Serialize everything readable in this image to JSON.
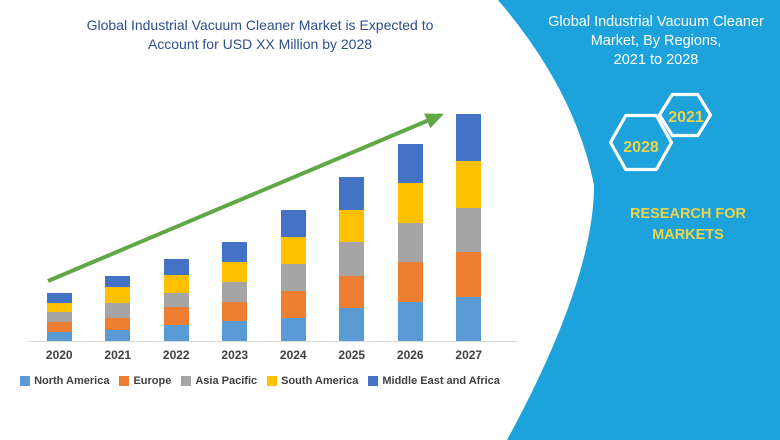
{
  "sidebar": {
    "bg_color": "#1DA2DB",
    "title_lines": [
      "Global Industrial Vacuum Cleaner",
      "Market, By Regions,",
      "2021 to 2028"
    ],
    "full_title": "Global Industrial Vacuum Cleaner Market, By Regions, 2021 to 2028",
    "hexagons": [
      {
        "label": "2028"
      },
      {
        "label": "2021"
      }
    ],
    "brand": "RESEARCH FOR MARKETS",
    "accent_text_color": "#E9D44C"
  },
  "chart_data": {
    "type": "bar",
    "stacked": true,
    "title": "Global Industrial Vacuum Cleaner Market is Expected to Account for USD XX Million by 2028",
    "title_color": "#2E4E8E",
    "categories": [
      "2020",
      "2021",
      "2022",
      "2023",
      "2024",
      "2025",
      "2026",
      "2027"
    ],
    "series": [
      {
        "name": "North America",
        "color": "#5B9BD5",
        "values": [
          9.5,
          11,
          16,
          20,
          23,
          33,
          39,
          44.5
        ]
      },
      {
        "name": "Europe",
        "color": "#ED7D31",
        "values": [
          10,
          12.5,
          18,
          19,
          27.5,
          32,
          40,
          45
        ]
      },
      {
        "name": "Asia Pacific",
        "color": "#A5A5A5",
        "values": [
          9.5,
          14.5,
          14.5,
          20,
          27,
          34,
          39.5,
          44
        ]
      },
      {
        "name": "South America",
        "color": "#FFC000",
        "values": [
          9.5,
          16,
          17.5,
          20,
          27,
          32,
          40,
          46.5
        ]
      },
      {
        "name": "Middle East and Africa",
        "color": "#4472C4",
        "values": [
          10,
          11.5,
          16,
          20,
          27,
          33,
          38.5,
          47
        ]
      }
    ],
    "totals": [
      48.5,
      65.5,
      82,
      99,
      131.5,
      164,
      197,
      227
    ],
    "xlabel": "",
    "ylabel": "",
    "ylim": [
      0,
      260
    ],
    "y_axis": "hidden - no numeric axis shown; series values are relative units estimated from bar heights",
    "grid": false,
    "legend_position": "bottom",
    "annotations": [
      {
        "type": "trend-arrow",
        "direction": "up",
        "color": "#5FA845"
      }
    ]
  }
}
